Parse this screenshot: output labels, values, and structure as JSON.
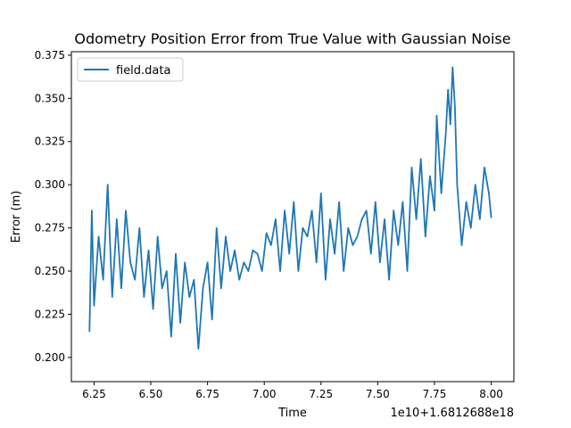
{
  "chart_data": {
    "type": "line",
    "title": "Odometry Position Error from True Value with Gaussian Noise",
    "xlabel": "Time",
    "ylabel": "Error (m)",
    "x_offset_label": "1e10+1.6812688e18",
    "xlim": [
      6.15,
      8.1
    ],
    "ylim": [
      0.186,
      0.377
    ],
    "x_ticks": [
      6.25,
      6.5,
      6.75,
      7.0,
      7.25,
      7.5,
      7.75,
      8.0
    ],
    "x_tick_labels": [
      "6.25",
      "6.50",
      "6.75",
      "7.00",
      "7.25",
      "7.50",
      "7.75",
      "8.00"
    ],
    "y_ticks": [
      0.2,
      0.225,
      0.25,
      0.275,
      0.3,
      0.325,
      0.35,
      0.375
    ],
    "y_tick_labels": [
      "0.200",
      "0.225",
      "0.250",
      "0.275",
      "0.300",
      "0.325",
      "0.350",
      "0.375"
    ],
    "grid": false,
    "legend": {
      "placement": "upper-left",
      "entries": [
        "field.data"
      ]
    },
    "series": [
      {
        "name": "field.data",
        "color": "#1f77b4",
        "x": [
          6.23,
          6.24,
          6.25,
          6.27,
          6.29,
          6.31,
          6.33,
          6.35,
          6.37,
          6.39,
          6.41,
          6.43,
          6.45,
          6.47,
          6.49,
          6.51,
          6.53,
          6.55,
          6.57,
          6.59,
          6.61,
          6.63,
          6.65,
          6.67,
          6.69,
          6.71,
          6.73,
          6.75,
          6.77,
          6.79,
          6.81,
          6.83,
          6.85,
          6.87,
          6.89,
          6.91,
          6.93,
          6.95,
          6.97,
          6.99,
          7.01,
          7.03,
          7.05,
          7.07,
          7.09,
          7.11,
          7.13,
          7.15,
          7.17,
          7.19,
          7.21,
          7.23,
          7.25,
          7.27,
          7.29,
          7.31,
          7.33,
          7.35,
          7.37,
          7.39,
          7.41,
          7.43,
          7.45,
          7.47,
          7.49,
          7.51,
          7.53,
          7.55,
          7.57,
          7.59,
          7.61,
          7.63,
          7.65,
          7.67,
          7.69,
          7.71,
          7.73,
          7.75,
          7.76,
          7.78,
          7.8,
          7.81,
          7.82,
          7.83,
          7.84,
          7.85,
          7.87,
          7.89,
          7.91,
          7.93,
          7.95,
          7.97,
          7.99,
          8.0
        ],
        "y": [
          0.215,
          0.285,
          0.23,
          0.27,
          0.245,
          0.3,
          0.235,
          0.28,
          0.24,
          0.285,
          0.255,
          0.245,
          0.275,
          0.235,
          0.262,
          0.228,
          0.27,
          0.24,
          0.25,
          0.212,
          0.26,
          0.22,
          0.255,
          0.235,
          0.245,
          0.205,
          0.24,
          0.255,
          0.222,
          0.275,
          0.24,
          0.27,
          0.25,
          0.262,
          0.245,
          0.255,
          0.25,
          0.262,
          0.26,
          0.25,
          0.272,
          0.265,
          0.28,
          0.25,
          0.285,
          0.26,
          0.29,
          0.25,
          0.275,
          0.27,
          0.285,
          0.255,
          0.295,
          0.245,
          0.28,
          0.26,
          0.29,
          0.25,
          0.275,
          0.265,
          0.27,
          0.28,
          0.285,
          0.26,
          0.29,
          0.255,
          0.28,
          0.245,
          0.285,
          0.265,
          0.29,
          0.25,
          0.31,
          0.28,
          0.315,
          0.27,
          0.305,
          0.285,
          0.34,
          0.295,
          0.33,
          0.355,
          0.335,
          0.368,
          0.345,
          0.3,
          0.265,
          0.29,
          0.275,
          0.3,
          0.28,
          0.31,
          0.295,
          0.281
        ]
      }
    ]
  }
}
